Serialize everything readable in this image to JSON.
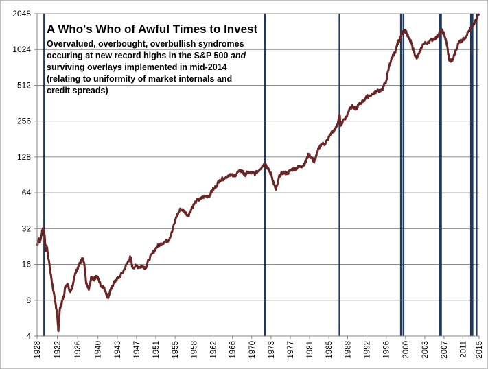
{
  "chart_data": {
    "type": "line",
    "title": "A Who's Who of Awful Times to Invest",
    "subtitle_lines": [
      "Overvalued, overbought, overbullish syndromes",
      "occuring at new record highs in the S&P 500 and",
      "surviving overlays implemented in mid-2014",
      "(relating to uniformity of market internals and",
      "credit spreads)"
    ],
    "subtitle_italic_word": "and",
    "xlabel": "",
    "ylabel": "",
    "y_scale": "log2",
    "ylim": [
      4,
      2048
    ],
    "xlim": [
      1928,
      2015.1
    ],
    "grid": "horizontal",
    "legend": "none",
    "y_ticks": [
      4,
      8,
      16,
      32,
      64,
      128,
      256,
      512,
      1024,
      2048
    ],
    "x_ticks": [
      "1928",
      "1932",
      "1936",
      "1940",
      "1943",
      "1947",
      "1951",
      "1955",
      "1958",
      "1962",
      "1966",
      "1970",
      "1973",
      "1977",
      "1981",
      "1985",
      "1988",
      "1992",
      "1996",
      "2000",
      "2003",
      "2007",
      "2011",
      "2015"
    ],
    "x_tick_years": [
      1928,
      1932,
      1936,
      1940,
      1943.8,
      1947.6,
      1951.4,
      1955.2,
      1958.9,
      1962.7,
      1966.5,
      1970.3,
      1974.1,
      1977.9,
      1981.7,
      1985.5,
      1989.2,
      1993,
      1996.8,
      2000.6,
      2004.4,
      2008.2,
      2011.9,
      2015.1
    ],
    "series": [
      {
        "color": "#6b2525",
        "x": [
          1928.0,
          1928.3,
          1928.6,
          1928.9,
          1929.2,
          1929.5,
          1929.7,
          1929.9,
          1930.2,
          1930.6,
          1931.0,
          1931.5,
          1931.9,
          1932.2,
          1932.5,
          1932.8,
          1933.2,
          1933.6,
          1934.0,
          1934.5,
          1935.0,
          1935.5,
          1936.0,
          1936.5,
          1937.0,
          1937.3,
          1937.7,
          1938.2,
          1938.7,
          1939.2,
          1939.7,
          1940.2,
          1940.6,
          1941.0,
          1941.5,
          1942.0,
          1942.3,
          1942.8,
          1943.5,
          1944.2,
          1945.0,
          1945.8,
          1946.4,
          1946.8,
          1947.5,
          1948.2,
          1948.8,
          1949.4,
          1950.0,
          1950.8,
          1951.6,
          1952.5,
          1953.3,
          1953.9,
          1954.6,
          1955.4,
          1956.3,
          1957.0,
          1957.8,
          1958.5,
          1959.4,
          1960.3,
          1961.0,
          1961.9,
          1962.5,
          1963.2,
          1964.0,
          1965.0,
          1966.0,
          1966.8,
          1967.6,
          1968.4,
          1968.9,
          1969.5,
          1970.3,
          1971.0,
          1971.8,
          1972.4,
          1973.0,
          1973.6,
          1974.2,
          1974.7,
          1975.1,
          1975.8,
          1976.5,
          1977.3,
          1978.1,
          1978.8,
          1979.5,
          1980.3,
          1980.9,
          1981.5,
          1982.2,
          1982.6,
          1983.2,
          1984.0,
          1984.7,
          1985.3,
          1986.0,
          1986.7,
          1987.3,
          1987.6,
          1987.85,
          1988.3,
          1989.0,
          1989.6,
          1990.2,
          1990.8,
          1991.3,
          1992.0,
          1993.0,
          1994.0,
          1995.0,
          1996.0,
          1996.8,
          1997.5,
          1998.2,
          1998.6,
          1999.0,
          1999.5,
          2000.0,
          2000.6,
          2001.2,
          2001.7,
          2002.2,
          2002.8,
          2003.3,
          2004.0,
          2005.0,
          2006.0,
          2006.8,
          2007.4,
          2007.8,
          2008.3,
          2008.8,
          2009.2,
          2009.8,
          2010.5,
          2011.2,
          2011.7,
          2012.3,
          2013.0,
          2013.8,
          2014.5,
          2015.1
        ],
        "y": [
          23,
          26,
          25,
          29,
          32,
          28,
          21,
          23,
          19,
          14,
          11,
          8,
          6.5,
          4.4,
          6.8,
          7.5,
          8.5,
          10.5,
          11,
          9.5,
          10.5,
          13.5,
          15,
          16.5,
          18,
          16,
          11,
          9.8,
          12.5,
          12,
          12.8,
          11.8,
          10.5,
          10.5,
          9.5,
          8.4,
          9.2,
          10.5,
          11.8,
          12.5,
          14,
          16.5,
          18.5,
          15,
          15.5,
          15.2,
          15.5,
          15,
          17.5,
          20,
          22.5,
          24,
          25,
          25.5,
          30,
          40,
          47,
          45,
          41,
          48,
          55,
          57,
          60,
          60,
          67,
          72,
          82,
          85,
          92,
          88,
          96,
          98,
          90,
          95,
          94,
          93,
          100,
          108,
          113,
          100,
          90,
          75,
          68,
          90,
          95,
          93,
          100,
          102,
          105,
          108,
          115,
          135,
          125,
          115,
          140,
          165,
          165,
          180,
          205,
          215,
          250,
          290,
          235,
          260,
          280,
          330,
          340,
          320,
          350,
          370,
          410,
          430,
          460,
          470,
          560,
          780,
          930,
          960,
          1150,
          1250,
          1450,
          1480,
          1280,
          1180,
          1000,
          860,
          950,
          1130,
          1180,
          1250,
          1300,
          1450,
          1480,
          1350,
          1100,
          830,
          820,
          1000,
          1200,
          1220,
          1280,
          1450,
          1600,
          1800,
          2050
        ]
      }
    ],
    "event_years": [
      1929.4,
      1972.9,
      1987.6,
      1999.7,
      2000.2,
      2007.4,
      2007.6,
      2013.5,
      2013.8,
      2014.6
    ]
  }
}
